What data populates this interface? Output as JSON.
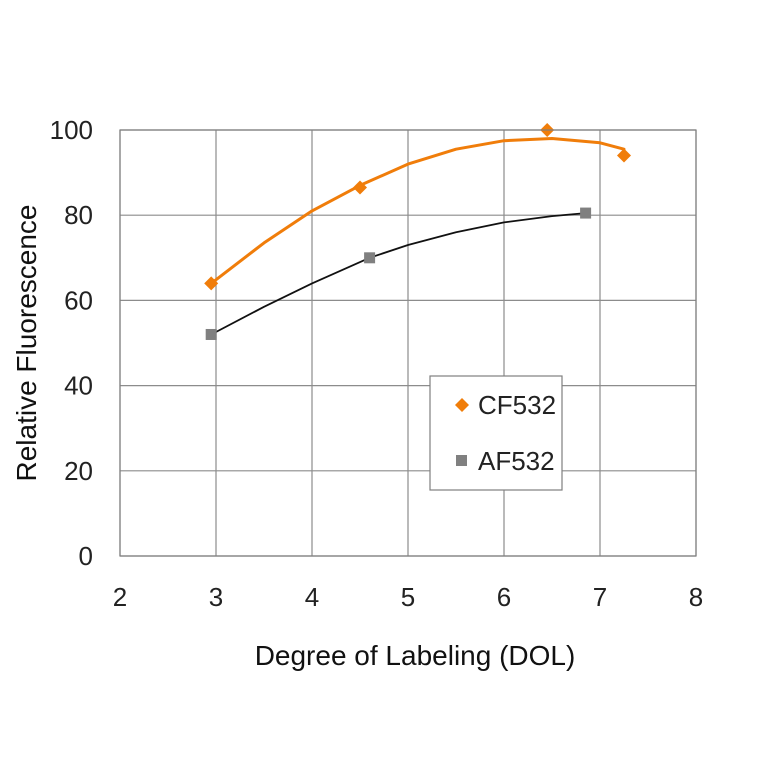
{
  "chart_data": {
    "type": "scatter",
    "xlabel": "Degree of Labeling (DOL)",
    "ylabel": "Relative Fluorescence",
    "xlim": [
      2,
      8
    ],
    "ylim": [
      0,
      100
    ],
    "x_ticks": [
      "2",
      "3",
      "4",
      "5",
      "6",
      "7",
      "8"
    ],
    "y_ticks": [
      "0",
      "20",
      "40",
      "60",
      "80",
      "100"
    ],
    "grid": true,
    "legend_position": "center-right",
    "series": [
      {
        "name": "CF532",
        "color": "#f07d0a",
        "marker": "diamond",
        "x": [
          2.95,
          4.5,
          6.45,
          7.25
        ],
        "y": [
          64,
          86.5,
          100,
          94
        ],
        "trend_x": [
          2.95,
          3.5,
          4.0,
          4.5,
          5.0,
          5.5,
          6.0,
          6.5,
          7.0,
          7.25
        ],
        "trend_y": [
          64,
          73.5,
          81,
          87,
          92,
          95.5,
          97.5,
          98,
          97,
          95.5
        ]
      },
      {
        "name": "AF532",
        "color": "#808080",
        "line_color": "#111111",
        "marker": "square",
        "x": [
          2.95,
          4.6,
          6.85
        ],
        "y": [
          52,
          70,
          80.5
        ],
        "trend_x": [
          2.95,
          3.5,
          4.0,
          4.6,
          5.0,
          5.5,
          6.0,
          6.5,
          6.85
        ],
        "trend_y": [
          52,
          58.5,
          64,
          70,
          73,
          76,
          78.3,
          79.8,
          80.5
        ]
      }
    ]
  }
}
